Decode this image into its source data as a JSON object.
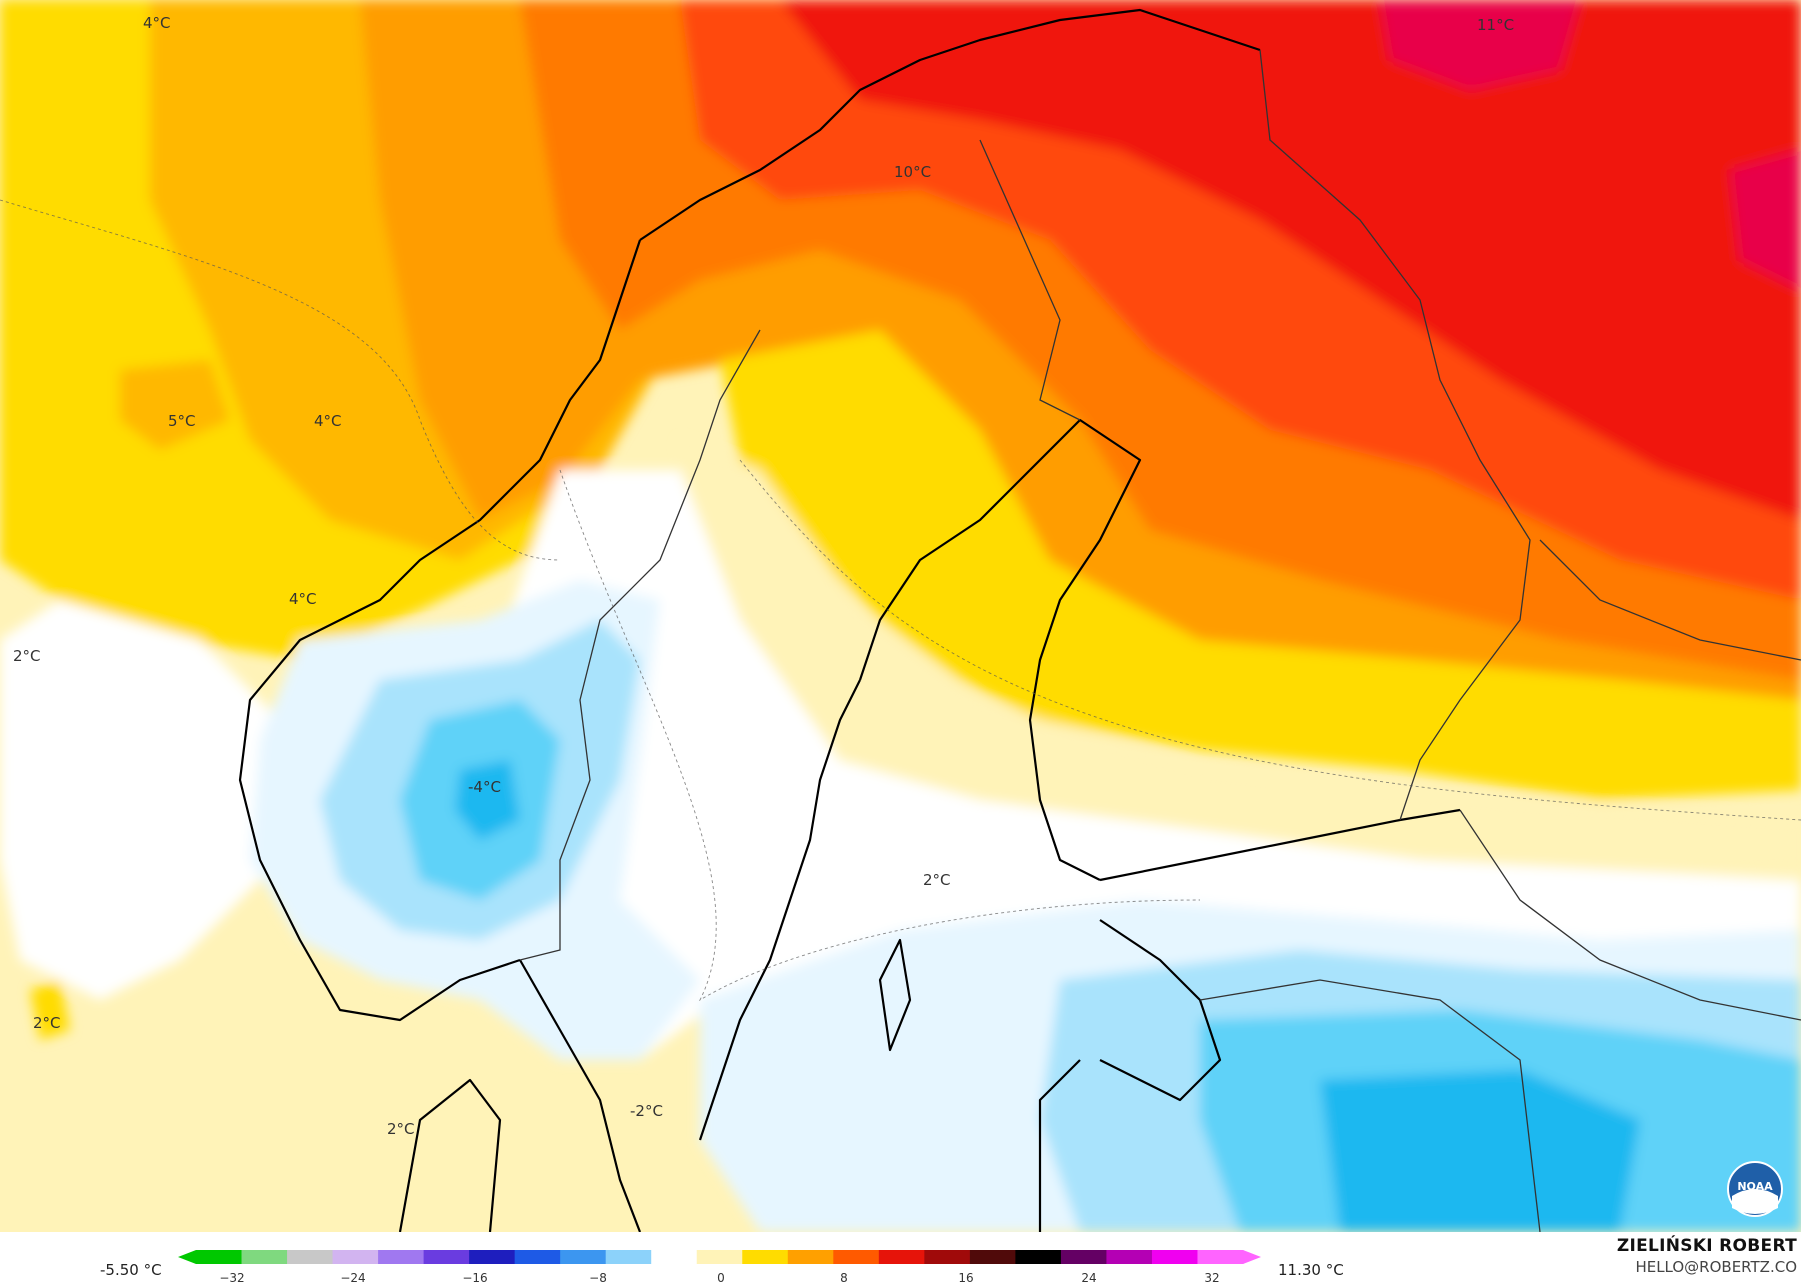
{
  "map": {
    "colors": {
      "white": "#ffffff",
      "light_yellow": "#fff3b8",
      "yellow": "#ffdc00",
      "amber": "#ffb800",
      "orange_light": "#ff9d00",
      "orange": "#ff7a00",
      "red_orange": "#ff4a0a",
      "red": "#f0140c",
      "crimson": "#e8004a",
      "light_blue": "#e6f6ff",
      "sky_blue": "#a9e3fc",
      "blue": "#5fd2f8",
      "deep_blue": "#1ab8f0"
    },
    "isotherm_labels": [
      {
        "text": "4°C",
        "icon": "label"
      },
      {
        "text": "11°C"
      },
      {
        "text": "10°C"
      },
      {
        "text": "5°C"
      },
      {
        "text": "4°C"
      },
      {
        "text": "4°C"
      },
      {
        "text": "2°C"
      },
      {
        "text": "-4°C"
      },
      {
        "text": "2°C"
      },
      {
        "text": "2°C"
      },
      {
        "text": "-2°C"
      },
      {
        "text": "2°C"
      }
    ]
  },
  "legend": {
    "min_value": "-5.50 °C",
    "max_value": "11.30 °C",
    "ticks": [
      "−32",
      "−24",
      "−16",
      "−8",
      "0",
      "8",
      "16",
      "24",
      "32"
    ],
    "colorbar_stops": [
      "#00c800",
      "#7fd97f",
      "#c8c8c8",
      "#d2b4f0",
      "#a078f0",
      "#6a3ce0",
      "#1e1ebe",
      "#1e5ae6",
      "#3c96f0",
      "#8cd2fa",
      "#ffffff",
      "#fff3b8",
      "#ffdc00",
      "#ffa000",
      "#ff5a00",
      "#e6140a",
      "#a00a0a",
      "#500a0a",
      "#000000",
      "#640064",
      "#b400b4",
      "#f000f0",
      "#ff64ff"
    ]
  },
  "author": {
    "name": "ZIELIŃSKI ROBERT",
    "email": "HELLO@ROBERTZ.CO"
  },
  "logo": {
    "text": "NOAA",
    "icon": "noaa-logo"
  }
}
